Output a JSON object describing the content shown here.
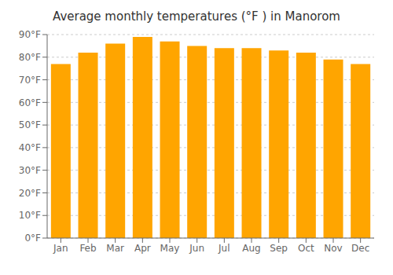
{
  "chart_data": {
    "type": "bar",
    "title": "Average monthly temperatures (°F ) in Manorom",
    "categories": [
      "Jan",
      "Feb",
      "Mar",
      "Apr",
      "May",
      "Jun",
      "Jul",
      "Aug",
      "Sep",
      "Oct",
      "Nov",
      "Dec"
    ],
    "values": [
      77,
      82,
      86,
      89,
      87,
      85,
      84,
      84,
      83,
      82,
      79,
      77
    ],
    "color": "#FFA500",
    "ylim": [
      0,
      90
    ],
    "yticks": [
      {
        "value": 0,
        "label": "0°F"
      },
      {
        "value": 10,
        "label": "10°F"
      },
      {
        "value": 20,
        "label": "20°F"
      },
      {
        "value": 30,
        "label": "30°F"
      },
      {
        "value": 40,
        "label": "40°F"
      },
      {
        "value": 50,
        "label": "50°F"
      },
      {
        "value": 60,
        "label": "60°F"
      },
      {
        "value": 70,
        "label": "70°F"
      },
      {
        "value": 80,
        "label": "80°F"
      },
      {
        "value": 90,
        "label": "90°F"
      }
    ],
    "grid": true
  }
}
